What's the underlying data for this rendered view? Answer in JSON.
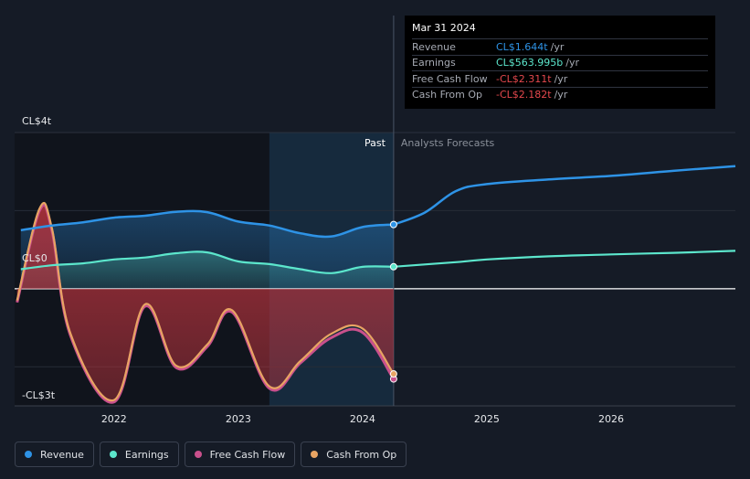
{
  "chart_data": {
    "type": "area",
    "y_unit": "CL$",
    "y_tick_labels": [
      {
        "label": "CL$4t",
        "value": 4
      },
      {
        "label": "CL$0",
        "value": 0
      },
      {
        "label": "-CL$3t",
        "value": -3
      }
    ],
    "ylim": [
      -3,
      4
    ],
    "xlim": [
      2021.2,
      2027.0
    ],
    "x_tick_labels": [
      {
        "label": "2022",
        "value": 2022
      },
      {
        "label": "2023",
        "value": 2023
      },
      {
        "label": "2024",
        "value": 2024
      },
      {
        "label": "2025",
        "value": 2025
      },
      {
        "label": "2026",
        "value": 2026
      }
    ],
    "past_label": "Past",
    "forecast_label": "Analysts Forecasts",
    "past_end_x": 2024.25,
    "shaded_start_x": 2023.25,
    "series": [
      {
        "name": "Revenue",
        "color": "#2e93e6",
        "past": [
          [
            2021.25,
            1.5
          ],
          [
            2021.5,
            1.62
          ],
          [
            2021.75,
            1.7
          ],
          [
            2022.0,
            1.82
          ],
          [
            2022.25,
            1.87
          ],
          [
            2022.5,
            1.97
          ],
          [
            2022.75,
            1.96
          ],
          [
            2023.0,
            1.72
          ],
          [
            2023.25,
            1.62
          ],
          [
            2023.5,
            1.42
          ],
          [
            2023.75,
            1.34
          ],
          [
            2024.0,
            1.58
          ],
          [
            2024.25,
            1.644
          ]
        ],
        "forecast": [
          [
            2024.25,
            1.644
          ],
          [
            2024.5,
            1.95
          ],
          [
            2024.75,
            2.5
          ],
          [
            2025.0,
            2.68
          ],
          [
            2025.5,
            2.8
          ],
          [
            2026.0,
            2.89
          ],
          [
            2026.5,
            3.02
          ],
          [
            2027.0,
            3.14
          ]
        ]
      },
      {
        "name": "Earnings",
        "color": "#5ce6cc",
        "past": [
          [
            2021.25,
            0.5
          ],
          [
            2021.5,
            0.6
          ],
          [
            2021.75,
            0.65
          ],
          [
            2022.0,
            0.75
          ],
          [
            2022.25,
            0.8
          ],
          [
            2022.5,
            0.91
          ],
          [
            2022.75,
            0.93
          ],
          [
            2023.0,
            0.7
          ],
          [
            2023.25,
            0.63
          ],
          [
            2023.5,
            0.5
          ],
          [
            2023.75,
            0.4
          ],
          [
            2024.0,
            0.56
          ],
          [
            2024.25,
            0.564
          ]
        ],
        "forecast": [
          [
            2024.25,
            0.564
          ],
          [
            2024.75,
            0.68
          ],
          [
            2025.0,
            0.75
          ],
          [
            2025.5,
            0.83
          ],
          [
            2026.0,
            0.88
          ],
          [
            2026.5,
            0.92
          ],
          [
            2027.0,
            0.97
          ]
        ]
      },
      {
        "name": "Free Cash Flow",
        "color": "#c9508c",
        "past": [
          [
            2021.22,
            -0.35
          ],
          [
            2021.4,
            2.0
          ],
          [
            2021.5,
            1.5
          ],
          [
            2021.65,
            -1.2
          ],
          [
            2022.0,
            -2.9
          ],
          [
            2022.25,
            -0.45
          ],
          [
            2022.5,
            -2.02
          ],
          [
            2022.75,
            -1.48
          ],
          [
            2022.95,
            -0.6
          ],
          [
            2023.25,
            -2.55
          ],
          [
            2023.5,
            -1.9
          ],
          [
            2023.75,
            -1.25
          ],
          [
            2024.0,
            -1.12
          ],
          [
            2024.25,
            -2.311
          ]
        ]
      },
      {
        "name": "Cash From Op",
        "color": "#e8a463",
        "past": [
          [
            2021.22,
            -0.3
          ],
          [
            2021.4,
            2.05
          ],
          [
            2021.5,
            1.55
          ],
          [
            2021.65,
            -1.15
          ],
          [
            2022.0,
            -2.85
          ],
          [
            2022.25,
            -0.4
          ],
          [
            2022.5,
            -1.97
          ],
          [
            2022.75,
            -1.43
          ],
          [
            2022.95,
            -0.55
          ],
          [
            2023.25,
            -2.5
          ],
          [
            2023.5,
            -1.85
          ],
          [
            2023.75,
            -1.15
          ],
          [
            2024.0,
            -1.02
          ],
          [
            2024.25,
            -2.182
          ]
        ]
      }
    ]
  },
  "tooltip": {
    "date": "Mar 31 2024",
    "rows": [
      {
        "label": "Revenue",
        "value": "CL$1.644t",
        "unit": "/yr",
        "color": "#2e93e6"
      },
      {
        "label": "Earnings",
        "value": "CL$563.995b",
        "unit": "/yr",
        "color": "#5ce6cc"
      },
      {
        "label": "Free Cash Flow",
        "value": "-CL$2.311t",
        "unit": "/yr",
        "color": "#e5484d"
      },
      {
        "label": "Cash From Op",
        "value": "-CL$2.182t",
        "unit": "/yr",
        "color": "#e5484d"
      }
    ]
  },
  "legend": [
    {
      "label": "Revenue",
      "color": "#2e93e6"
    },
    {
      "label": "Earnings",
      "color": "#5ce6cc"
    },
    {
      "label": "Free Cash Flow",
      "color": "#c9508c"
    },
    {
      "label": "Cash From Op",
      "color": "#e8a463"
    }
  ]
}
